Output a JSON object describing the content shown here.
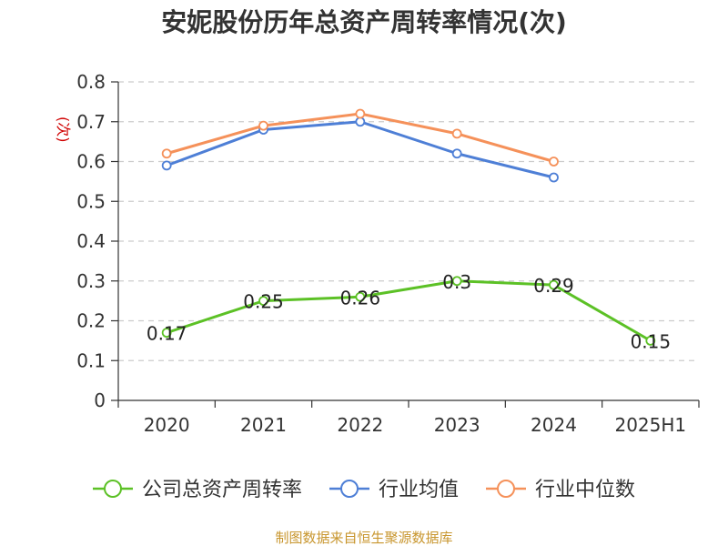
{
  "chart_data": {
    "type": "line",
    "title": "安妮股份历年总资产周转率情况(次)",
    "ylabel": "(次)",
    "ylim": [
      0,
      0.8
    ],
    "yticks": [
      "0",
      "0.1",
      "0.2",
      "0.3",
      "0.4",
      "0.5",
      "0.6",
      "0.7",
      "0.8"
    ],
    "categories": [
      "2020",
      "2021",
      "2022",
      "2023",
      "2024",
      "2025H1"
    ],
    "grid": true,
    "legend_position": "bottom",
    "series": [
      {
        "name": "公司总资产周转率",
        "color": "#5cc126",
        "values": [
          0.17,
          0.25,
          0.26,
          0.3,
          0.29,
          0.15
        ],
        "labels": [
          "0.17",
          "0.25",
          "0.26",
          "0.3",
          "0.29",
          "0.15"
        ]
      },
      {
        "name": "行业均值",
        "color": "#4e7fd6",
        "values": [
          0.59,
          0.68,
          0.7,
          0.62,
          0.56,
          null
        ]
      },
      {
        "name": "行业中位数",
        "color": "#f5915a",
        "values": [
          0.62,
          0.69,
          0.72,
          0.67,
          0.6,
          null
        ]
      }
    ],
    "source": "制图数据来自恒生聚源数据库"
  }
}
